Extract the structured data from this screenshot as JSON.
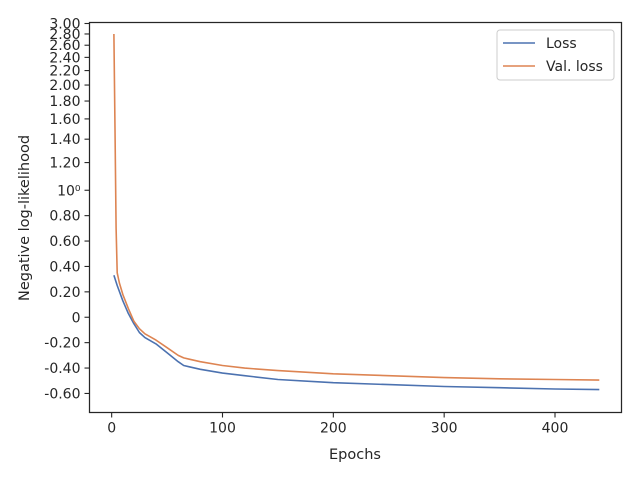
{
  "chart_data": {
    "type": "line",
    "title": "",
    "xlabel": "Epochs",
    "ylabel": "Negative log-likelihood",
    "xlim": [
      -20,
      460
    ],
    "ylim": [
      -0.75,
      3.0
    ],
    "y_scale": "symlog (linear between -1 and 1, logarithmic above 1)",
    "grid": false,
    "legend_position": "top-right",
    "x_ticks": [
      0,
      100,
      200,
      300,
      400
    ],
    "x_tick_labels": [
      "0",
      "100",
      "200",
      "300",
      "400"
    ],
    "y_ticks": [
      -0.6,
      -0.4,
      -0.2,
      0,
      0.2,
      0.4,
      0.6,
      0.8,
      1.0,
      1.2,
      1.4,
      1.6,
      1.8,
      2.0,
      2.2,
      2.4,
      2.6,
      2.8,
      3.0
    ],
    "y_tick_labels": [
      "-0.60",
      "-0.40",
      "-0.20",
      "0",
      "0.20",
      "0.40",
      "0.60",
      "0.80",
      "10⁰",
      "1.20",
      "1.40",
      "1.60",
      "1.80",
      "2.00",
      "2.20",
      "2.40",
      "2.60",
      "2.80",
      "3.00"
    ],
    "series": [
      {
        "name": "Loss",
        "color": "#4c72b0",
        "x": [
          2,
          5,
          10,
          15,
          20,
          25,
          30,
          40,
          50,
          60,
          65,
          70,
          80,
          100,
          120,
          150,
          200,
          250,
          300,
          350,
          400,
          440
        ],
        "y": [
          0.33,
          0.25,
          0.13,
          0.03,
          -0.05,
          -0.12,
          -0.16,
          -0.21,
          -0.28,
          -0.35,
          -0.38,
          -0.39,
          -0.41,
          -0.44,
          -0.46,
          -0.49,
          -0.515,
          -0.53,
          -0.545,
          -0.555,
          -0.565,
          -0.57
        ]
      },
      {
        "name": "Val. loss",
        "color": "#dd8452",
        "x": [
          2,
          3,
          4,
          5,
          7,
          10,
          15,
          20,
          25,
          30,
          40,
          50,
          60,
          65,
          70,
          80,
          100,
          120,
          150,
          200,
          250,
          300,
          350,
          400,
          440
        ],
        "y": [
          2.8,
          1.5,
          0.7,
          0.35,
          0.27,
          0.18,
          0.07,
          -0.03,
          -0.09,
          -0.13,
          -0.18,
          -0.24,
          -0.3,
          -0.32,
          -0.33,
          -0.35,
          -0.38,
          -0.4,
          -0.42,
          -0.445,
          -0.46,
          -0.475,
          -0.485,
          -0.49,
          -0.495
        ]
      }
    ]
  }
}
